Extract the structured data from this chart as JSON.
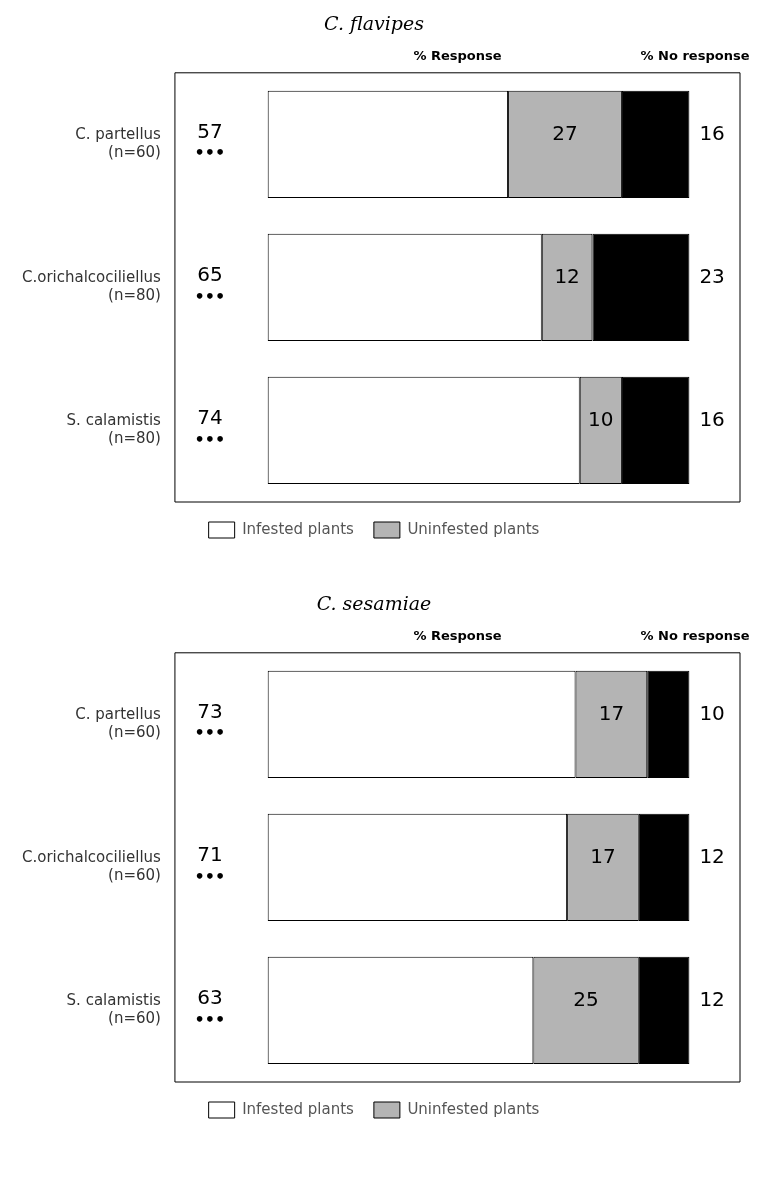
{
  "chart_data": [
    {
      "type": "bar",
      "orientation": "horizontal",
      "stacked": true,
      "title": "C. flavipes",
      "categories": [
        "C. partellus\n(n=60)",
        "C.orichalcociliellus\n(n=80)",
        "S. calamistis\n(n=80)"
      ],
      "series": [
        {
          "name": "Infested plants",
          "color": "#ffffff",
          "values": [
            57,
            65,
            74
          ]
        },
        {
          "name": "Uninfested plants",
          "color": "#b4b4b4",
          "values": [
            27,
            12,
            10
          ]
        },
        {
          "color": "#000000",
          "values": [
            16,
            23,
            16
          ]
        }
      ],
      "data_labels": true,
      "legend": "bottom",
      "annotations": [
        "% Response",
        "% No response",
        "•••",
        "•••",
        "•••"
      ]
    },
    {
      "type": "bar",
      "orientation": "horizontal",
      "stacked": true,
      "title": "C. sesamiae",
      "categories": [
        "C. partellus\n(n=60)",
        "C.orichalcociliellus\n(n=60)",
        "S. calamistis\n(n=60)"
      ],
      "series": [
        {
          "name": "Infested plants",
          "color": "#ffffff",
          "values": [
            73,
            71,
            63
          ]
        },
        {
          "name": "Uninfested plants",
          "color": "#b4b4b4",
          "values": [
            17,
            17,
            25
          ]
        },
        {
          "color": "#000000",
          "values": [
            10,
            12,
            12
          ]
        }
      ],
      "data_labels": true,
      "legend": "bottom",
      "annotations": [
        "% Response",
        "% No response",
        "•••",
        "•••",
        "•••"
      ]
    }
  ]
}
